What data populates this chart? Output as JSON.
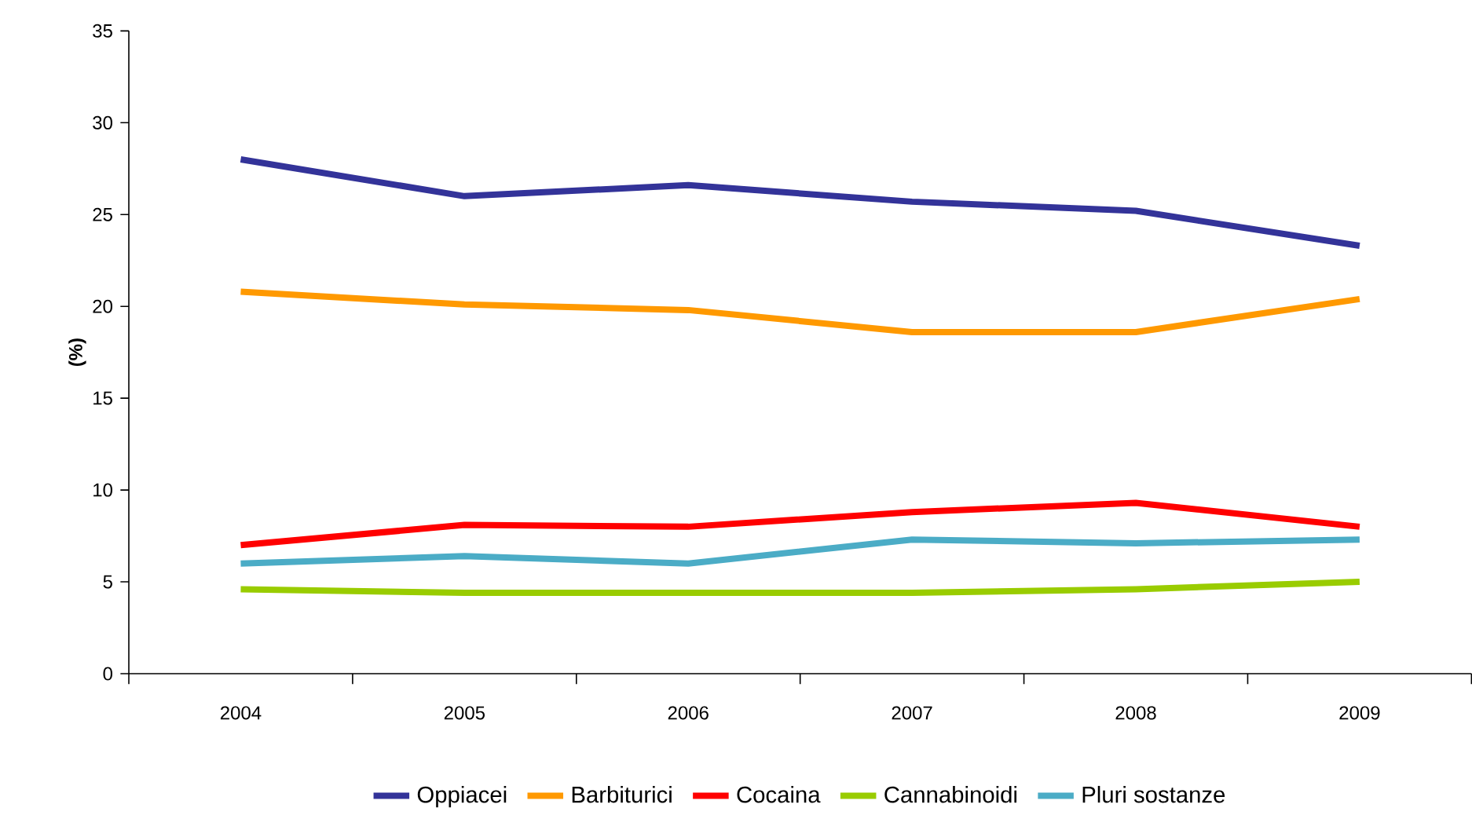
{
  "chart_data": {
    "type": "line",
    "ylabel": "(%)",
    "categories": [
      "2004",
      "2005",
      "2006",
      "2007",
      "2008",
      "2009"
    ],
    "series": [
      {
        "name": "Oppiacei",
        "color": "#333399",
        "values": [
          28.0,
          26.0,
          26.6,
          25.7,
          25.2,
          23.3
        ]
      },
      {
        "name": "Barbiturici",
        "color": "#ff9900",
        "values": [
          20.8,
          20.1,
          19.8,
          18.6,
          18.6,
          20.4
        ]
      },
      {
        "name": "Cocaina",
        "color": "#ff0000",
        "values": [
          7.0,
          8.1,
          8.0,
          8.8,
          9.3,
          8.0
        ]
      },
      {
        "name": "Cannabinoidi",
        "color": "#99cc00",
        "values": [
          4.6,
          4.4,
          4.4,
          4.4,
          4.6,
          5.0
        ]
      },
      {
        "name": "Pluri sostanze",
        "color": "#4bacc6",
        "values": [
          6.0,
          6.4,
          6.0,
          7.3,
          7.1,
          7.3
        ]
      }
    ],
    "ylim": [
      0,
      35
    ],
    "yticks": [
      0,
      5,
      10,
      15,
      20,
      25,
      30,
      35
    ],
    "legend": "bottom"
  }
}
